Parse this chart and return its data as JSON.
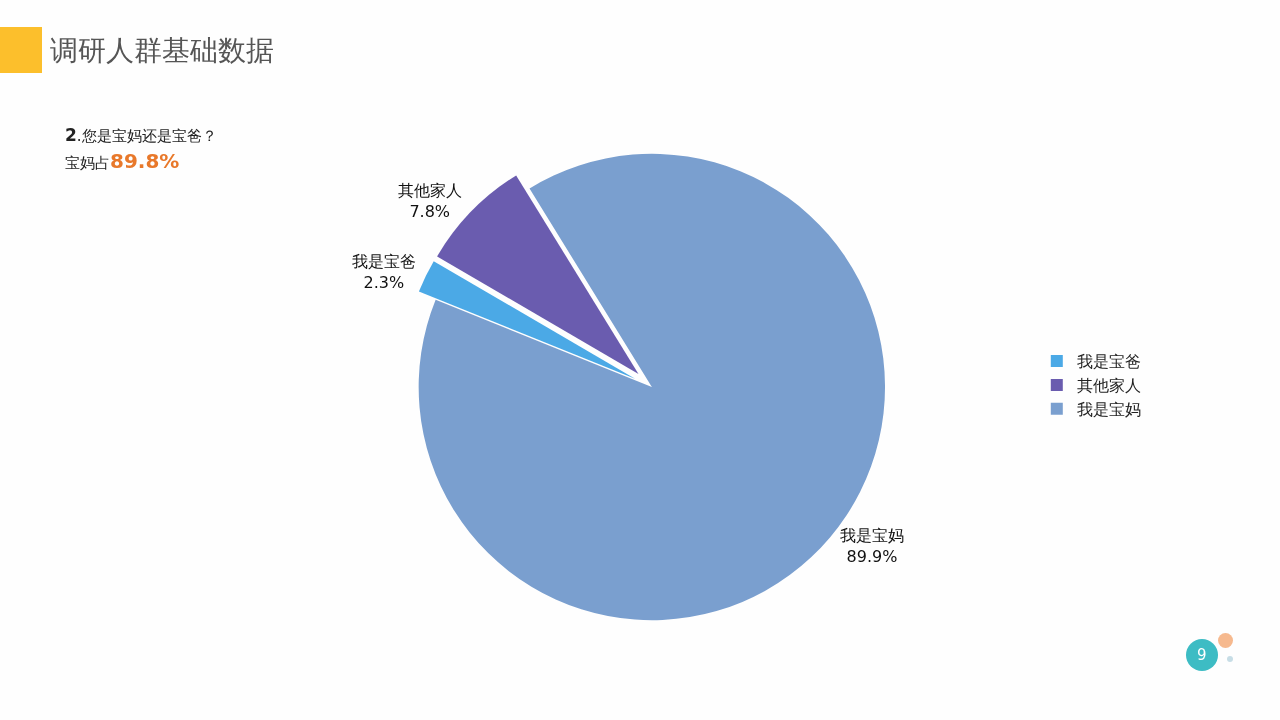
{
  "chart_data": {
    "type": "pie",
    "title": "调研人群基础数据",
    "categories": [
      "我是宝爸",
      "其他家人",
      "我是宝妈"
    ],
    "values": [
      2.3,
      7.8,
      89.9
    ],
    "colors": [
      "#4ba9e6",
      "#6a5caf",
      "#7a9fcf"
    ],
    "value_labels": [
      "2.3%",
      "7.8%",
      "89.9%"
    ],
    "legend": "right",
    "annotations": [
      "2.您是宝妈还是宝爸？",
      "宝妈占89.8%",
      "9"
    ]
  }
}
